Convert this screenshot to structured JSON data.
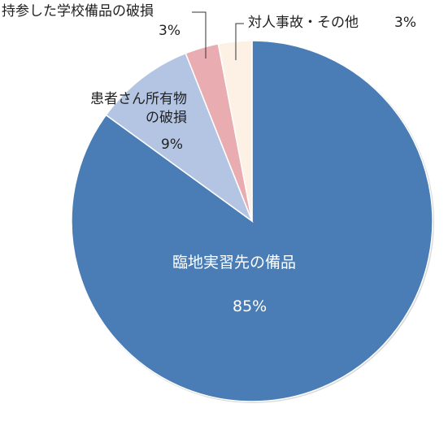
{
  "chart_data": {
    "type": "pie",
    "categories": [
      "臨地実習先の備品",
      "患者さん所有物の破損",
      "持参した学校備品の破損",
      "対人事故・その他"
    ],
    "values": [
      85,
      9,
      3,
      3
    ],
    "value_labels": [
      "85%",
      "9%",
      "3%",
      "3%"
    ],
    "colors": [
      "#4a7db5",
      "#b3c5e3",
      "#e9adb1",
      "#fdf1e6"
    ]
  }
}
